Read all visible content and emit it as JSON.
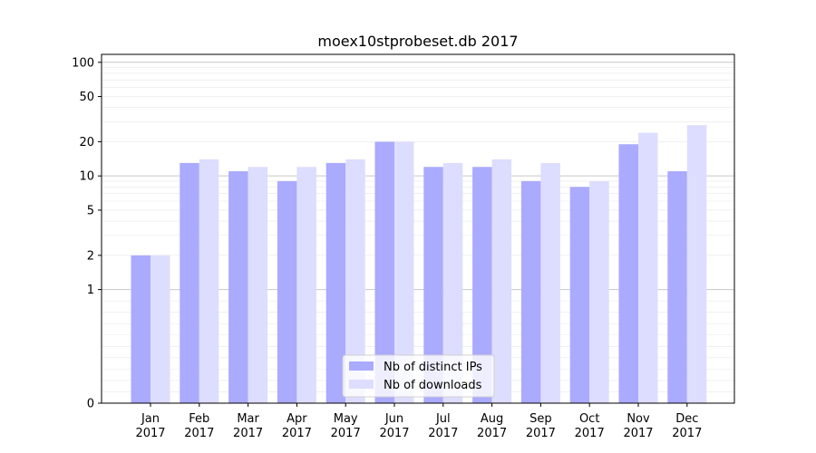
{
  "chart_data": {
    "type": "bar",
    "title": "moex10stprobeset.db 2017",
    "xlabel": "",
    "ylabel": "",
    "y_scale": "symlog",
    "ylim": [
      0,
      100
    ],
    "y_ticks": [
      0,
      1,
      2,
      5,
      10,
      20,
      50,
      100
    ],
    "grid": "horizontal",
    "legend_position": "bottom-center",
    "categories": [
      "Jan\n2017",
      "Feb\n2017",
      "Mar\n2017",
      "Apr\n2017",
      "May\n2017",
      "Jun\n2017",
      "Jul\n2017",
      "Aug\n2017",
      "Sep\n2017",
      "Oct\n2017",
      "Nov\n2017",
      "Dec\n2017"
    ],
    "series": [
      {
        "name": "Nb of distinct IPs",
        "color": "#aaaaff",
        "values": [
          2,
          13,
          11,
          9,
          13,
          20,
          12,
          12,
          9,
          8,
          19,
          11
        ]
      },
      {
        "name": "Nb of downloads",
        "color": "#ddddff",
        "values": [
          2,
          14,
          12,
          12,
          14,
          20,
          13,
          14,
          13,
          9,
          24,
          28
        ]
      }
    ]
  }
}
